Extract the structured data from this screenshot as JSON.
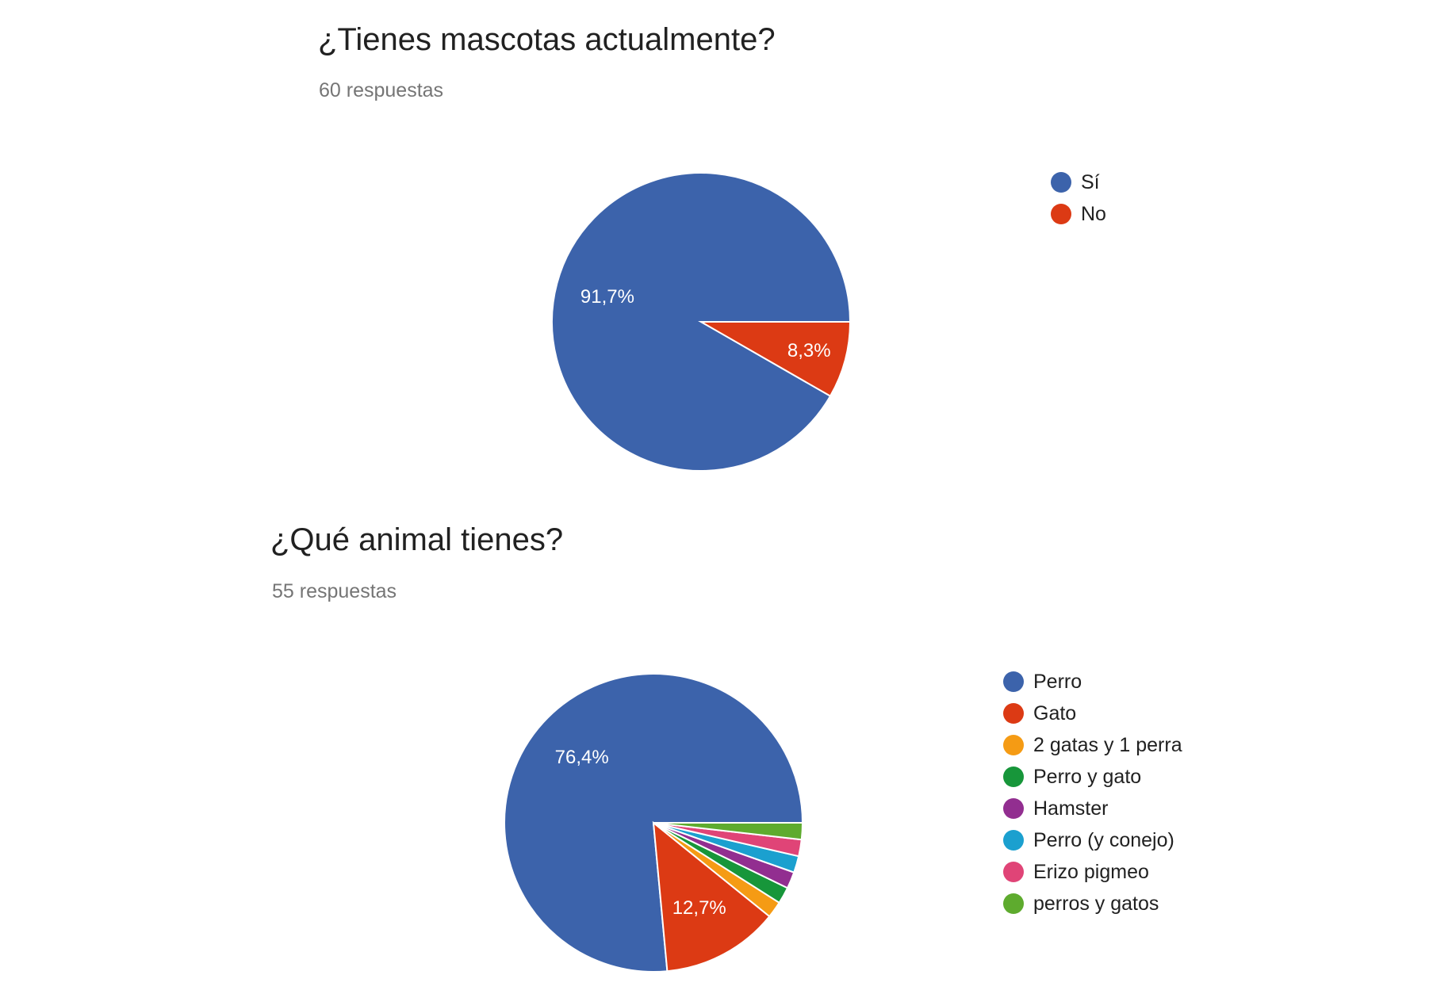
{
  "chart_data": [
    {
      "type": "pie",
      "title": "¿Tienes mascotas actualmente?",
      "subtitle": "60 respuestas",
      "categories": [
        "Sí",
        "No"
      ],
      "values": [
        91.7,
        8.3
      ],
      "data_labels": [
        "91,7%",
        "8,3%"
      ],
      "colors": [
        "#3c63ab",
        "#dc3a14"
      ],
      "legend": "right"
    },
    {
      "type": "pie",
      "title": "¿Qué animal tienes?",
      "subtitle": "55 respuestas",
      "categories": [
        "Perro",
        "Gato",
        "2 gatas y 1 perra",
        "Perro y gato",
        "Hamster",
        "Perro (y conejo)",
        "Erizo pigmeo",
        "perros y gatos"
      ],
      "values": [
        76.4,
        12.7,
        1.8,
        1.8,
        1.8,
        1.8,
        1.8,
        1.8
      ],
      "data_labels": [
        "76,4%",
        "12,7%",
        "",
        "",
        "",
        "",
        "",
        ""
      ],
      "colors": [
        "#3c63ab",
        "#dc3a14",
        "#f59b14",
        "#17963a",
        "#922e90",
        "#1ba0cf",
        "#e04477",
        "#5eab2e"
      ],
      "legend": "right"
    }
  ]
}
